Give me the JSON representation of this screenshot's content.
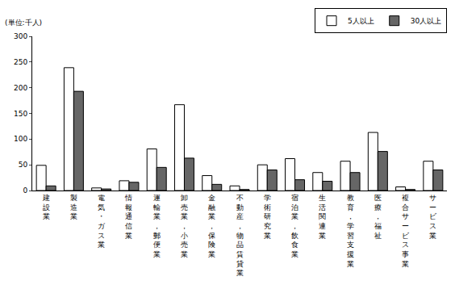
{
  "chart_data": {
    "type": "bar",
    "ylabel": "(単位:千人)",
    "categories": [
      "建設業",
      "製造業",
      "電気・ガス業",
      "情報通信業",
      "運輸業，郵便業",
      "卸売業，小売業",
      "金融業，保険業",
      "不動産，物品賃貸業",
      "学術研究業",
      "宿泊業，飲食業",
      "生活関連業",
      "教育，学習支援業",
      "医療，福祉",
      "複合サービス事業",
      "サービス業"
    ],
    "series": [
      {
        "name": "5人以上",
        "color": "#ffffff",
        "values": [
          49,
          239,
          5,
          19,
          81,
          167,
          29,
          9,
          50,
          62,
          35,
          57,
          113,
          7,
          57
        ]
      },
      {
        "name": "30人以上",
        "color": "#666666",
        "values": [
          9,
          193,
          3,
          16,
          45,
          63,
          12,
          2,
          40,
          21,
          18,
          35,
          76,
          2,
          40
        ]
      }
    ],
    "ylim": [
      0,
      300
    ],
    "yticks": [
      0,
      50,
      100,
      150,
      200,
      250,
      300
    ],
    "grid": false,
    "legend": "top right"
  }
}
